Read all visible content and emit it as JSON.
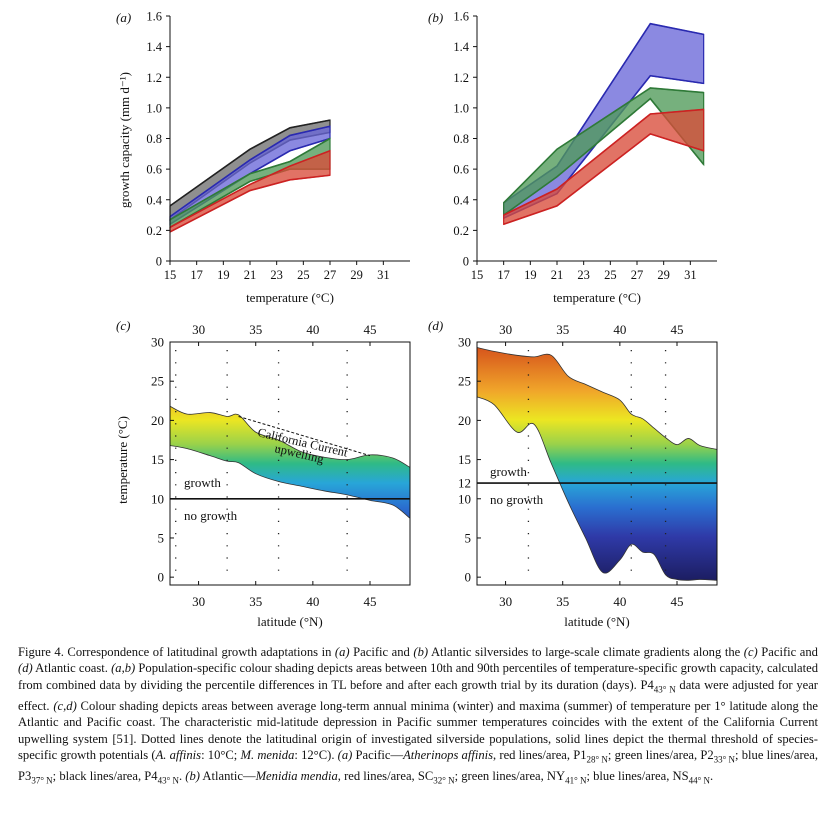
{
  "figure": {
    "caption_parts": [
      {
        "t": "Figure 4. Correspondence of latitudinal growth adaptations in "
      },
      {
        "t": "(a)",
        "i": true
      },
      {
        "t": " Pacific and "
      },
      {
        "t": "(b)",
        "i": true
      },
      {
        "t": " Atlantic silversides to large-scale climate gradients along the "
      },
      {
        "t": "(c)",
        "i": true
      },
      {
        "t": " Pacific and "
      },
      {
        "t": "(d)",
        "i": true
      },
      {
        "t": " Atlantic coast. "
      },
      {
        "t": "(a,b)",
        "i": true
      },
      {
        "t": " Population-specific colour shading depicts areas between 10th and 90th percentiles of temperature-specific growth capacity, calculated from combined data by dividing the percentile differences in TL before and after each growth trial by its duration (days). P4"
      },
      {
        "t": "43° N",
        "sub": true
      },
      {
        "t": " data were adjusted for year effect. "
      },
      {
        "t": "(c,d)",
        "i": true
      },
      {
        "t": " Colour shading depicts areas between average long-term annual minima (winter) and maxima (summer) of temperature per 1° latitude along the Atlantic and Pacific coast. The characteristic mid-latitude depression in Pacific summer temperatures coincides with the extent of the California Current upwelling system [51]. Dotted lines denote the latitudinal origin of investigated silverside populations, solid lines depict the thermal threshold of species-specific growth potentials ("
      },
      {
        "t": "A. affinis",
        "i": true
      },
      {
        "t": ": 10°C; "
      },
      {
        "t": "M. menida",
        "i": true
      },
      {
        "t": ": 12°C). "
      },
      {
        "t": "(a)",
        "i": true
      },
      {
        "t": " Pacific—"
      },
      {
        "t": "Atherinops affinis",
        "i": true
      },
      {
        "t": ", red lines/area, P1"
      },
      {
        "t": "28° N",
        "sub": true
      },
      {
        "t": "; green lines/area, P2"
      },
      {
        "t": "33° N",
        "sub": true
      },
      {
        "t": "; blue lines/area, P3"
      },
      {
        "t": "37° N",
        "sub": true
      },
      {
        "t": "; black lines/area, P4"
      },
      {
        "t": "43° N",
        "sub": true
      },
      {
        "t": ". "
      },
      {
        "t": "(b)",
        "i": true
      },
      {
        "t": " Atlantic—"
      },
      {
        "t": "Menidia mendia",
        "i": true
      },
      {
        "t": ", red lines/area, SC"
      },
      {
        "t": "32° N",
        "sub": true
      },
      {
        "t": "; green lines/area, NY"
      },
      {
        "t": "41° N",
        "sub": true
      },
      {
        "t": "; blue lines/area, NS"
      },
      {
        "t": "44° N",
        "sub": true
      },
      {
        "t": "."
      }
    ]
  },
  "chart_data": [
    {
      "panel": "(a)",
      "type": "area",
      "xlabel": "temperature (°C)",
      "ylabel": "growth capacity (mm d⁻¹)",
      "xlim": [
        15,
        33
      ],
      "ylim": [
        0,
        1.6
      ],
      "xticks": [
        15,
        17,
        19,
        21,
        23,
        25,
        27,
        29,
        31
      ],
      "yticks": [
        0,
        0.2,
        0.4,
        0.6,
        0.8,
        1.0,
        1.2,
        1.4,
        1.6
      ],
      "ytick_labels": [
        "0",
        "0.2",
        "0.4",
        "0.6",
        "0.8",
        "1.0",
        "1.2",
        "1.4",
        "1.6"
      ],
      "grid": false,
      "series": [
        {
          "color": "#707070",
          "line": "#222222",
          "x": [
            15,
            21,
            24,
            27
          ],
          "lower": [
            0.27,
            0.64,
            0.79,
            0.84
          ],
          "upper": [
            0.36,
            0.73,
            0.87,
            0.92
          ]
        },
        {
          "color": "#6a68d8",
          "line": "#2a2ab0",
          "x": [
            15,
            21,
            24,
            27
          ],
          "lower": [
            0.24,
            0.57,
            0.72,
            0.8
          ],
          "upper": [
            0.29,
            0.66,
            0.82,
            0.88
          ]
        },
        {
          "color": "#4f9a58",
          "line": "#2f7a38",
          "x": [
            15,
            21,
            24,
            27
          ],
          "lower": [
            0.22,
            0.52,
            0.6,
            0.6
          ],
          "upper": [
            0.27,
            0.57,
            0.65,
            0.8
          ]
        },
        {
          "color": "#d94b3a",
          "line": "#cc2222",
          "x": [
            15,
            21,
            24,
            27
          ],
          "lower": [
            0.19,
            0.46,
            0.53,
            0.56
          ],
          "upper": [
            0.22,
            0.5,
            0.62,
            0.72
          ]
        }
      ]
    },
    {
      "panel": "(b)",
      "type": "area",
      "xlabel": "temperature (°C)",
      "xlim": [
        15,
        33
      ],
      "ylim": [
        0,
        1.6
      ],
      "xticks": [
        15,
        17,
        19,
        21,
        23,
        25,
        27,
        29,
        31
      ],
      "yticks": [
        0,
        0.2,
        0.4,
        0.6,
        0.8,
        1.0,
        1.2,
        1.4,
        1.6
      ],
      "ytick_labels": [
        "0",
        "0.2",
        "0.4",
        "0.6",
        "0.8",
        "1.0",
        "1.2",
        "1.4",
        "1.6"
      ],
      "grid": false,
      "series": [
        {
          "color": "#6a68d8",
          "line": "#2a2ab0",
          "x": [
            17,
            21,
            28,
            32
          ],
          "lower": [
            0.28,
            0.44,
            1.21,
            1.16
          ],
          "upper": [
            0.38,
            0.62,
            1.55,
            1.48
          ]
        },
        {
          "color": "#4f9a58",
          "line": "#2f7a38",
          "x": [
            17,
            21,
            28,
            32
          ],
          "lower": [
            0.3,
            0.55,
            1.06,
            0.63
          ],
          "upper": [
            0.38,
            0.73,
            1.13,
            1.1
          ]
        },
        {
          "color": "#d94b3a",
          "line": "#cc2222",
          "x": [
            17,
            21,
            28,
            32
          ],
          "lower": [
            0.24,
            0.36,
            0.83,
            0.72
          ],
          "upper": [
            0.3,
            0.47,
            0.96,
            0.99
          ]
        }
      ]
    },
    {
      "panel": "(c)",
      "type": "area",
      "xlabel": "latitude (°N)",
      "ylabel": "temperature (°C)",
      "xlim": [
        27.5,
        48.5
      ],
      "ylim": [
        -1,
        30
      ],
      "xticks": [
        30,
        35,
        40,
        45
      ],
      "yticks": [
        0,
        5,
        10,
        15,
        20,
        25,
        30
      ],
      "grid": false,
      "x": [
        27.5,
        29,
        31,
        32.5,
        33.5,
        35,
        37,
        39,
        41,
        43,
        45,
        47,
        48.5
      ],
      "upper": [
        21.8,
        20.8,
        21.0,
        20.5,
        20.7,
        18.5,
        17.5,
        16.0,
        15.3,
        15.0,
        15.6,
        15.2,
        14.0
      ],
      "lower": [
        16.8,
        16.4,
        15.5,
        14.8,
        14.6,
        13.2,
        12.2,
        11.6,
        11.0,
        10.5,
        9.8,
        9.2,
        7.5
      ],
      "threshold": 10,
      "population_lines": [
        28,
        32.5,
        37,
        43
      ],
      "upwelling_line": {
        "x": [
          33.5,
          45
        ],
        "y": [
          20.5,
          15.5
        ]
      },
      "annotations": [
        "California Current",
        "upwelling",
        "growth",
        "no growth"
      ]
    },
    {
      "panel": "(d)",
      "type": "area",
      "xlabel": "latitude (°N)",
      "xlim": [
        27.5,
        48.5
      ],
      "ylim": [
        -1,
        30
      ],
      "xticks": [
        30,
        35,
        40,
        45
      ],
      "yticks": [
        0,
        5,
        10,
        15,
        20,
        25,
        30
      ],
      "extra_ytick": "12",
      "grid": false,
      "x": [
        27.5,
        29,
        31,
        32.5,
        34,
        35.5,
        37,
        38.5,
        40,
        41,
        42,
        43,
        44,
        45,
        46,
        47,
        48.5
      ],
      "upper": [
        29.3,
        28.8,
        28.3,
        28.1,
        28.3,
        25.6,
        24.6,
        23.6,
        22.6,
        20.8,
        20.2,
        19.0,
        17.8,
        16.9,
        17.7,
        16.8,
        16.3
      ],
      "lower": [
        23.0,
        22.0,
        18.5,
        19.5,
        14.5,
        9.5,
        5.0,
        0.6,
        2.2,
        4.2,
        3.2,
        2.9,
        0.3,
        -0.3,
        -0.4,
        -0.3,
        -0.4
      ],
      "threshold": 12,
      "population_lines": [
        32,
        41,
        44
      ],
      "annotations": [
        "growth",
        "no growth"
      ]
    }
  ]
}
